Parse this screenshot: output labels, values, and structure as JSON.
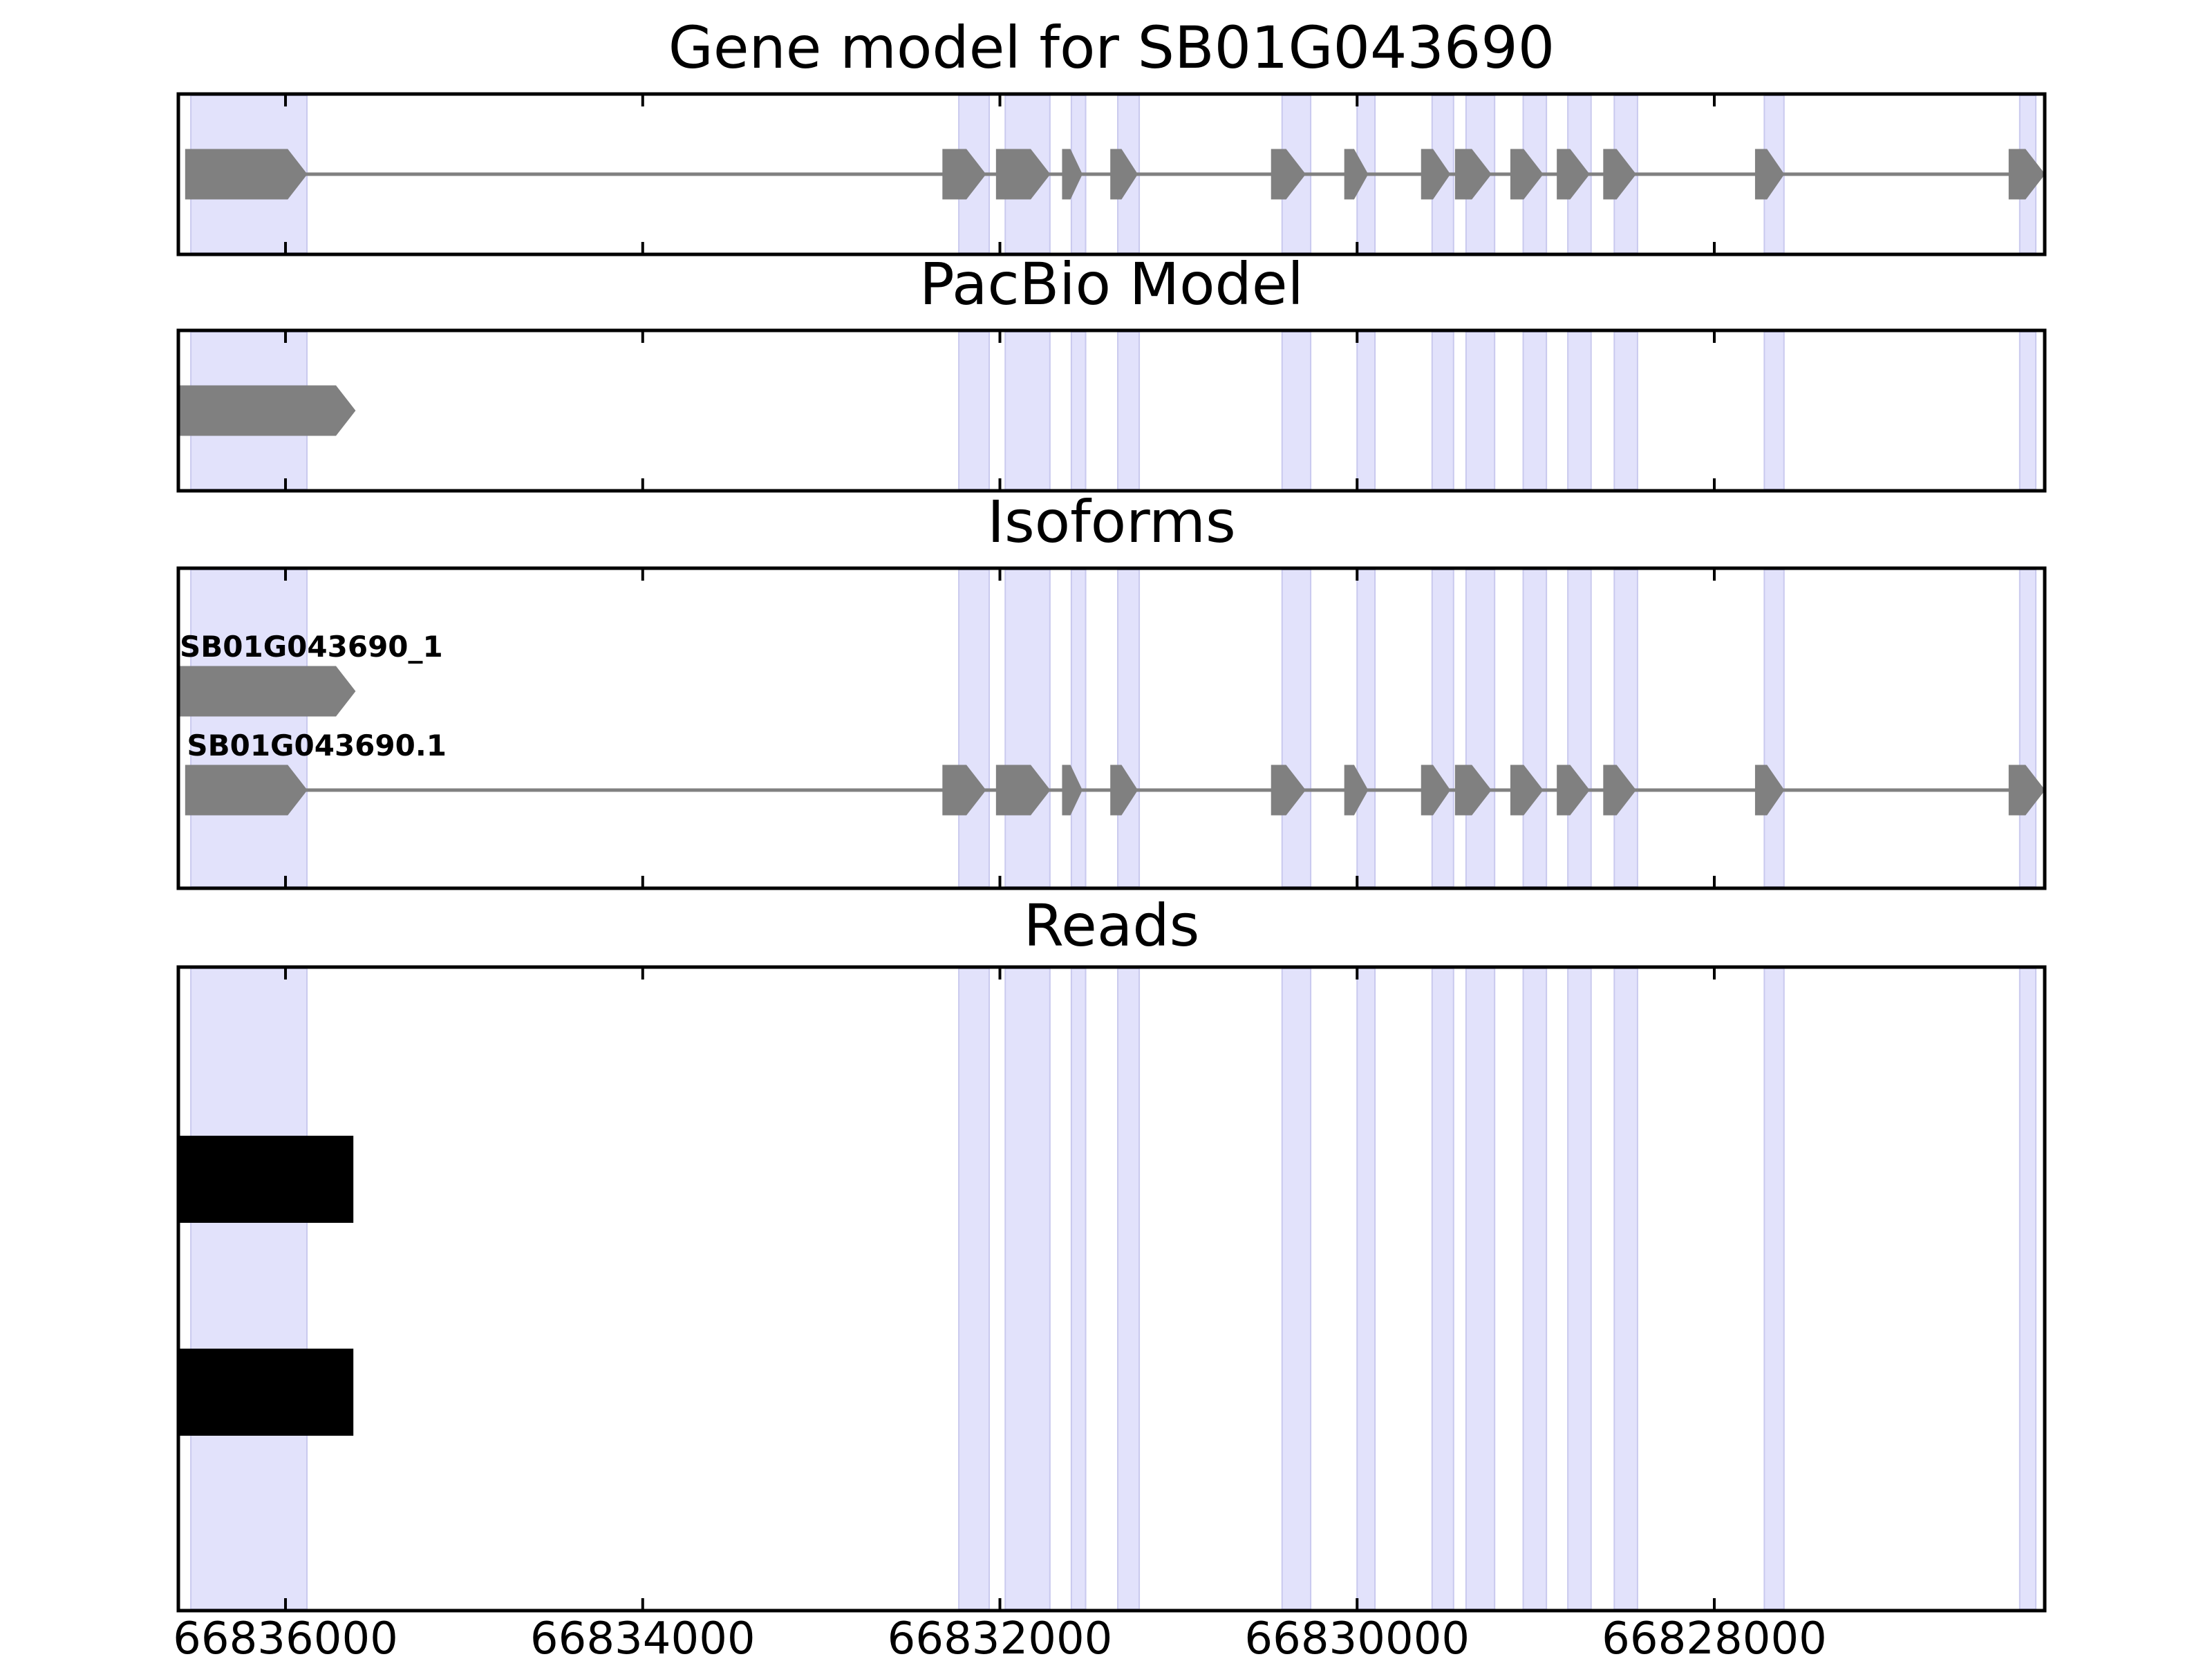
{
  "chart_data": {
    "type": "gene-track",
    "x_axis": {
      "reversed": true,
      "range": [
        66836600,
        66826150
      ],
      "ticks": [
        66836000,
        66834000,
        66832000,
        66830000,
        66828000
      ],
      "tick_labels": [
        "66836000",
        "66834000",
        "66832000",
        "66830000",
        "66828000"
      ]
    },
    "exon_shading": [
      [
        66836530,
        66835880
      ],
      [
        66832230,
        66832060
      ],
      [
        66831970,
        66831720
      ],
      [
        66831600,
        66831520
      ],
      [
        66831340,
        66831220
      ],
      [
        66830420,
        66830260
      ],
      [
        66830000,
        66829900
      ],
      [
        66829580,
        66829460
      ],
      [
        66829390,
        66829230
      ],
      [
        66829070,
        66828940
      ],
      [
        66828820,
        66828690
      ],
      [
        66828560,
        66828430
      ],
      [
        66827720,
        66827610
      ],
      [
        66826290,
        66826200
      ]
    ],
    "panels": [
      {
        "key": "gene_model",
        "title": "Gene model for SB01G043690",
        "tracks": [
          {
            "label": "",
            "exons": [
              [
                66836560,
                66835880
              ],
              [
                66832320,
                66832080
              ],
              [
                66832020,
                66831720
              ],
              [
                66831650,
                66831540
              ],
              [
                66831380,
                66831230
              ],
              [
                66830480,
                66830290
              ],
              [
                66830070,
                66829940
              ],
              [
                66829640,
                66829480
              ],
              [
                66829450,
                66829250
              ],
              [
                66829140,
                66828960
              ],
              [
                66828880,
                66828700
              ],
              [
                66828620,
                66828440
              ],
              [
                66827770,
                66827610
              ],
              [
                66826350,
                66826150
              ]
            ]
          }
        ]
      },
      {
        "key": "pacbio",
        "title": "PacBio Model",
        "tracks": [
          {
            "label": "",
            "exons": [
              [
                66836600,
                66835610
              ]
            ]
          }
        ]
      },
      {
        "key": "isoforms",
        "title": "Isoforms",
        "tracks": [
          {
            "label": "SB01G043690_1",
            "exons": [
              [
                66836600,
                66835610
              ]
            ]
          },
          {
            "label": "SB01G043690.1",
            "exons": [
              [
                66836560,
                66835880
              ],
              [
                66832320,
                66832080
              ],
              [
                66832020,
                66831720
              ],
              [
                66831650,
                66831540
              ],
              [
                66831380,
                66831230
              ],
              [
                66830480,
                66830290
              ],
              [
                66830070,
                66829940
              ],
              [
                66829640,
                66829480
              ],
              [
                66829450,
                66829250
              ],
              [
                66829140,
                66828960
              ],
              [
                66828880,
                66828700
              ],
              [
                66828620,
                66828440
              ],
              [
                66827770,
                66827610
              ],
              [
                66826350,
                66826150
              ]
            ]
          }
        ]
      },
      {
        "key": "reads",
        "title": "Reads",
        "reads": [
          [
            66836600,
            66835620
          ],
          [
            66836600,
            66835620
          ]
        ]
      }
    ],
    "colors": {
      "exon_fill": "#808080",
      "intron_line": "#808080",
      "shading": "#e2e2fb",
      "read_fill": "#000000",
      "frame": "#000000",
      "text": "#000000"
    }
  }
}
